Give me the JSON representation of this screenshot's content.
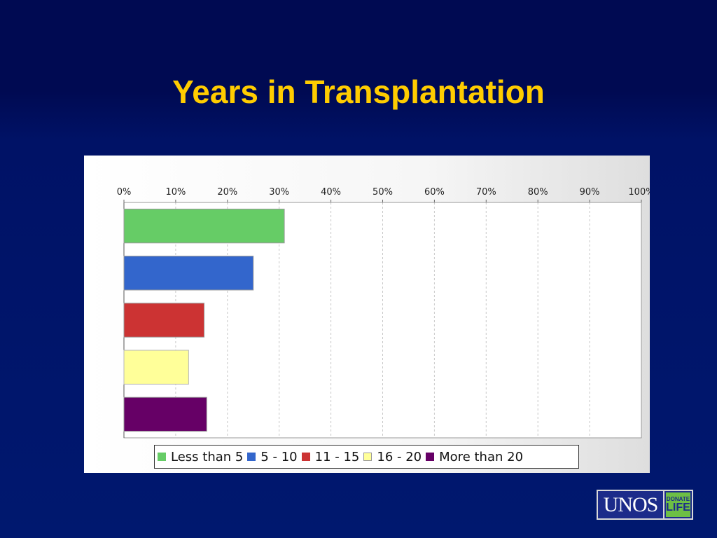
{
  "slide": {
    "title": "Years in Transplantation"
  },
  "chart_data": {
    "type": "bar",
    "orientation": "horizontal",
    "title": "",
    "xlabel": "",
    "ylabel": "",
    "xlim": [
      0,
      100
    ],
    "ticks": [
      "0%",
      "10%",
      "20%",
      "30%",
      "40%",
      "50%",
      "60%",
      "70%",
      "80%",
      "90%",
      "100%"
    ],
    "grid": true,
    "legend_position": "bottom",
    "categories": [
      "Less than 5",
      "5 - 10",
      "11 - 15",
      "16 - 20",
      "More than 20"
    ],
    "values": [
      31,
      25,
      15.5,
      12.5,
      16
    ],
    "colors": [
      "#66cc66",
      "#3366cc",
      "#cc3333",
      "#ffff99",
      "#660066"
    ]
  },
  "logo": {
    "unos": "UNOS",
    "donate": "DONATE",
    "life": "LIFE"
  }
}
